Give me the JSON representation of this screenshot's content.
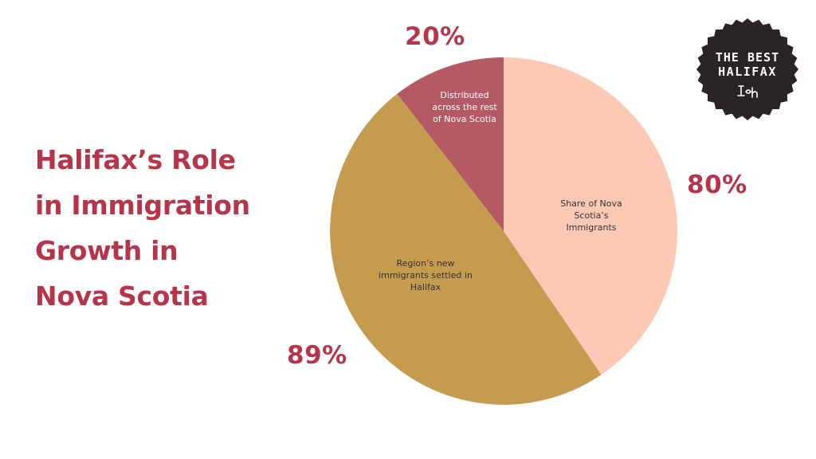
{
  "title_lines": [
    "Halifax’s Role",
    "in Immigration",
    "Growth in",
    "Nova Scotia"
  ],
  "logo": {
    "text": "THE BEST HALIFAX",
    "mark": "f͟ϡh",
    "color": "#2a2424"
  },
  "chart_data": {
    "type": "pie",
    "title": "Halifax’s Role in Immigration Growth in Nova Scotia",
    "slices": [
      {
        "label": "Share of Nova Scotia’s Immigrants",
        "value_label": "80%",
        "fraction": 0.405,
        "color": "#fdc9b4",
        "label_color": "#333333"
      },
      {
        "label": "Region’s new immigrants settled in Halifax",
        "value_label": "89%",
        "fraction": 0.49,
        "color": "#c59b50",
        "label_color": "#333333"
      },
      {
        "label": "Distributed across the rest of Nova Scotia",
        "value_label": "20%",
        "fraction": 0.105,
        "color": "#b45a64",
        "label_color": "#ffffff"
      }
    ],
    "start_angle": "12 o'clock",
    "direction": "clockwise",
    "legend": "none"
  }
}
